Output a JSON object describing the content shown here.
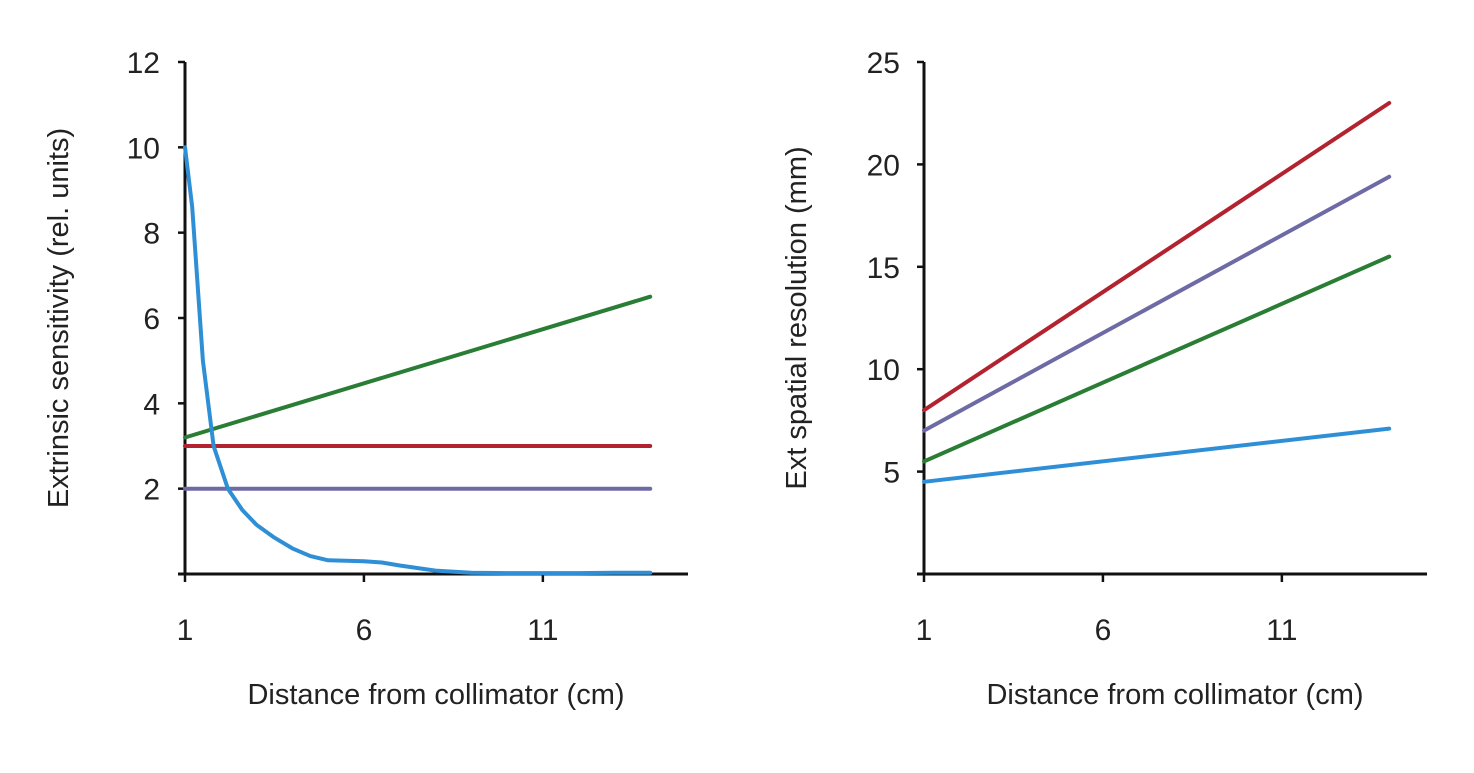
{
  "chart_data": [
    {
      "type": "line",
      "title": "",
      "xlabel": "Distance from collimator (cm)",
      "ylabel": "Extrinsic sensitivity (rel. units)",
      "xlim": [
        1,
        15
      ],
      "ylim": [
        0,
        12
      ],
      "xticks": [
        1,
        6,
        11
      ],
      "yticks": [
        2,
        4,
        6,
        8,
        10,
        12
      ],
      "grid": false,
      "series": [
        {
          "color": "#2a7d34",
          "x": [
            1,
            14
          ],
          "y": [
            3.2,
            6.5
          ]
        },
        {
          "color": "#b3232f",
          "x": [
            1,
            14
          ],
          "y": [
            3.0,
            3.0
          ]
        },
        {
          "color": "#6e6aa6",
          "x": [
            1,
            14
          ],
          "y": [
            2.0,
            2.0
          ]
        },
        {
          "color": "#2f8fd6",
          "x": [
            1,
            1.2,
            1.5,
            1.8,
            2.2,
            2.6,
            3,
            3.5,
            4,
            4.5,
            5,
            6,
            6.5,
            7,
            8,
            9,
            10,
            11,
            12,
            13,
            14
          ],
          "y": [
            10,
            8.6,
            5.0,
            3.0,
            2.0,
            1.5,
            1.15,
            0.85,
            0.6,
            0.42,
            0.32,
            0.3,
            0.27,
            0.2,
            0.08,
            0.03,
            0.02,
            0.02,
            0.02,
            0.03,
            0.03
          ]
        }
      ]
    },
    {
      "type": "line",
      "title": "",
      "xlabel": "Distance from collimator (cm)",
      "ylabel": "Ext spatial resolution (mm)",
      "xlim": [
        1,
        15
      ],
      "ylim": [
        0,
        25
      ],
      "xticks": [
        1,
        6,
        11
      ],
      "yticks": [
        5,
        10,
        15,
        20,
        25
      ],
      "grid": false,
      "series": [
        {
          "color": "#b3232f",
          "x": [
            1,
            14
          ],
          "y": [
            8.0,
            23.0
          ]
        },
        {
          "color": "#6e6aa6",
          "x": [
            1,
            14
          ],
          "y": [
            7.0,
            19.4
          ]
        },
        {
          "color": "#2a7d34",
          "x": [
            1,
            14
          ],
          "y": [
            5.5,
            15.5
          ]
        },
        {
          "color": "#2f8fd6",
          "x": [
            1,
            14
          ],
          "y": [
            4.5,
            7.1
          ]
        }
      ]
    }
  ]
}
